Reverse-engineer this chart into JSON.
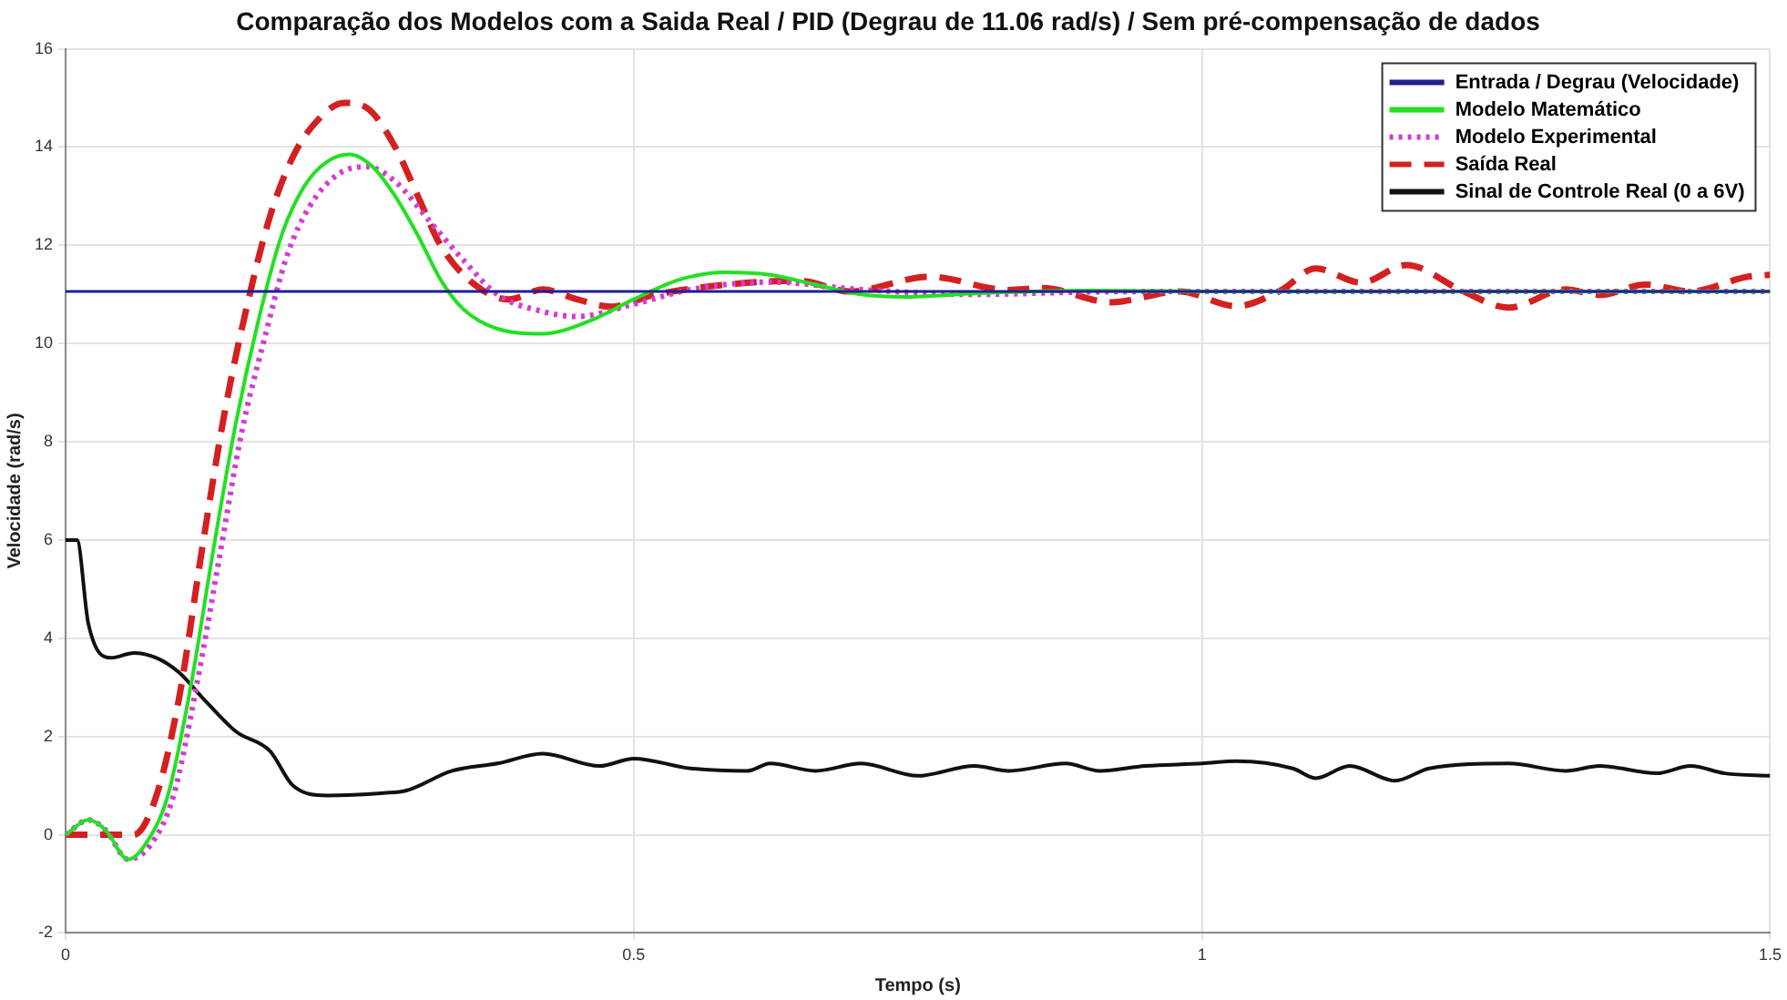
{
  "chart_data": {
    "type": "line",
    "title": "Comparação dos Modelos com a Saida Real / PID (Degrau de 11.06 rad/s) / Sem pré-compensação de dados",
    "xlabel": "Tempo (s)",
    "ylabel": "Velocidade (rad/s)",
    "xlim": [
      0,
      1.5
    ],
    "xticks": [
      0,
      0.5,
      1,
      1.5
    ],
    "ylim": [
      -2,
      16
    ],
    "yticks": [
      -2,
      0,
      2,
      4,
      6,
      8,
      10,
      12,
      14,
      16
    ],
    "grid": true,
    "legend": "top right",
    "marker": "none",
    "series": [
      {
        "name": "Entrada / Degrau (Velocidade)",
        "color": "#1f1f8f",
        "line_style": "solid",
        "x": [
          0,
          1.5
        ],
        "values": [
          11.06,
          11.06
        ]
      },
      {
        "name": "Modelo Matemático",
        "color": "#22e022",
        "line_style": "solid",
        "x": [
          0,
          0.02,
          0.035,
          0.055,
          0.07,
          0.09,
          0.11,
          0.13,
          0.15,
          0.17,
          0.19,
          0.21,
          0.23,
          0.25,
          0.27,
          0.29,
          0.31,
          0.33,
          0.35,
          0.38,
          0.42,
          0.46,
          0.5,
          0.54,
          0.58,
          0.62,
          0.66,
          0.7,
          0.74,
          0.8,
          0.9,
          1.0,
          1.5
        ],
        "values": [
          0,
          0.3,
          0.1,
          -0.5,
          -0.2,
          0.8,
          3,
          5.8,
          8.4,
          10.5,
          12.2,
          13.2,
          13.7,
          13.85,
          13.6,
          13,
          12.2,
          11.3,
          10.7,
          10.3,
          10.2,
          10.45,
          10.9,
          11.3,
          11.45,
          11.4,
          11.2,
          11.0,
          10.95,
          11.02,
          11.08,
          11.06,
          11.06
        ]
      },
      {
        "name": "Modelo Experimental",
        "color": "#d63ad6",
        "line_style": "dotted",
        "x": [
          0,
          0.02,
          0.035,
          0.055,
          0.075,
          0.095,
          0.115,
          0.135,
          0.155,
          0.175,
          0.195,
          0.215,
          0.24,
          0.265,
          0.29,
          0.32,
          0.35,
          0.38,
          0.42,
          0.45,
          0.5,
          0.55,
          0.62,
          0.7,
          0.8,
          0.9,
          1.0,
          1.5
        ],
        "values": [
          0,
          0.3,
          0.1,
          -0.5,
          -0.2,
          0.8,
          3,
          5.6,
          8.2,
          10.1,
          11.8,
          12.8,
          13.45,
          13.6,
          13.3,
          12.5,
          11.7,
          11.0,
          10.65,
          10.55,
          10.8,
          11.1,
          11.25,
          11.1,
          11.0,
          11.05,
          11.06,
          11.06
        ]
      },
      {
        "name": "Saída Real",
        "color": "#d42020",
        "line_style": "dashed",
        "x": [
          0,
          0.06,
          0.08,
          0.1,
          0.12,
          0.14,
          0.16,
          0.18,
          0.2,
          0.22,
          0.245,
          0.265,
          0.29,
          0.31,
          0.33,
          0.36,
          0.39,
          0.42,
          0.45,
          0.48,
          0.518,
          0.582,
          0.646,
          0.69,
          0.76,
          0.83,
          0.86,
          0.92,
          0.98,
          1.03,
          1.07,
          1.1,
          1.14,
          1.18,
          1.23,
          1.27,
          1.32,
          1.35,
          1.39,
          1.43,
          1.48,
          1.5
        ],
        "values": [
          0,
          0,
          0.8,
          2.8,
          5.8,
          8.6,
          10.8,
          12.6,
          13.8,
          14.5,
          14.9,
          14.8,
          14,
          13,
          12,
          11.2,
          10.9,
          11.1,
          10.9,
          10.75,
          10.99,
          11.2,
          11.28,
          11.06,
          11.36,
          11.09,
          11.13,
          10.84,
          11.06,
          10.76,
          11.09,
          11.53,
          11.24,
          11.6,
          11.06,
          10.73,
          11.1,
          10.99,
          11.2,
          11.06,
          11.36,
          11.4
        ]
      },
      {
        "name": "Sinal de Controle Real (0 a 6V)",
        "color": "#111111",
        "line_style": "solid",
        "x": [
          0,
          0.01,
          0.02,
          0.04,
          0.06,
          0.08,
          0.1,
          0.12,
          0.15,
          0.18,
          0.2,
          0.23,
          0.28,
          0.3,
          0.34,
          0.38,
          0.42,
          0.47,
          0.5,
          0.55,
          0.6,
          0.62,
          0.66,
          0.7,
          0.75,
          0.8,
          0.83,
          0.88,
          0.91,
          0.95,
          1.0,
          1.03,
          1.08,
          1.1,
          1.13,
          1.17,
          1.2,
          1.27,
          1.32,
          1.35,
          1.4,
          1.43,
          1.46,
          1.5
        ],
        "values": [
          6,
          6,
          4.3,
          3.6,
          3.7,
          3.6,
          3.3,
          2.8,
          2.1,
          1.7,
          1.0,
          0.8,
          0.85,
          0.9,
          1.3,
          1.45,
          1.65,
          1.4,
          1.55,
          1.35,
          1.3,
          1.45,
          1.3,
          1.45,
          1.2,
          1.4,
          1.3,
          1.45,
          1.3,
          1.4,
          1.45,
          1.5,
          1.35,
          1.15,
          1.4,
          1.1,
          1.35,
          1.45,
          1.3,
          1.4,
          1.25,
          1.4,
          1.25,
          1.2
        ]
      }
    ]
  }
}
